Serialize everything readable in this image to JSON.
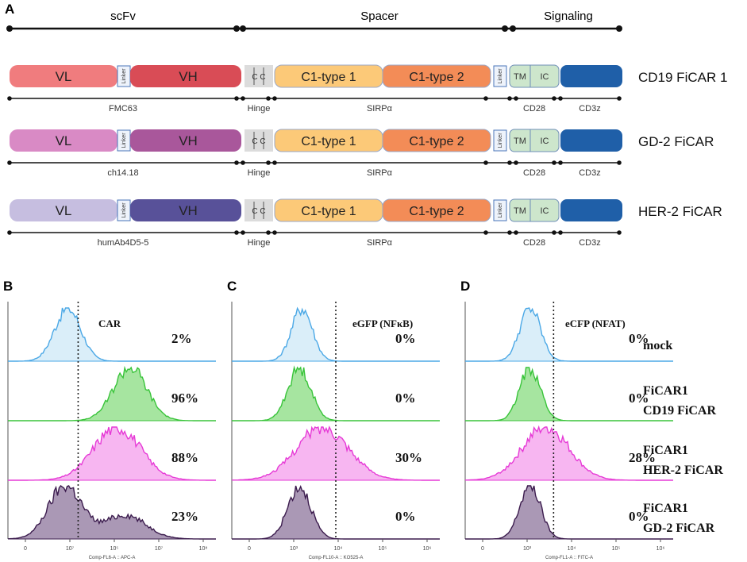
{
  "panels": {
    "A": "A",
    "B": "B",
    "C": "C",
    "D": "D"
  },
  "panelA": {
    "sections": {
      "scfv": "scFv",
      "spacer": "Spacer",
      "signaling": "Signaling"
    },
    "constructs": [
      {
        "name": "CD19 FiCAR 1",
        "vl": "VL",
        "vh": "VH",
        "vl_color": "#f07c7e",
        "vh_color": "#d94c56",
        "scfv_label": "FMC63",
        "hinge": "Hinge",
        "sirp": "SIRPα",
        "cd28": "CD28",
        "cd3z": "CD3z"
      },
      {
        "name": "GD-2 FiCAR",
        "vl": "VL",
        "vh": "VH",
        "vl_color": "#d98ac5",
        "vh_color": "#a9579b",
        "scfv_label": "ch14.18",
        "hinge": "Hinge",
        "sirp": "SIRPα",
        "cd28": "CD28",
        "cd3z": "CD3z"
      },
      {
        "name": "HER-2 FiCAR",
        "vl": "VL",
        "vh": "VH",
        "vl_color": "#c6bee0",
        "vh_color": "#585199",
        "scfv_label": "humAb4D5-5",
        "hinge": "Hinge",
        "sirp": "SIRPα",
        "cd28": "CD28",
        "cd3z": "CD3z"
      }
    ],
    "linker": "Linker",
    "cc": "C C",
    "c1_type1": "C1-type 1",
    "c1_type2": "C1-type 2",
    "tm": "TM",
    "ic": "IC",
    "colors": {
      "c1_type1": "#fcc978",
      "c1_type2": "#f38c57",
      "tmic": "#cde6cc",
      "cd3z": "#1f5fa8",
      "linker_box": "#eef3fb",
      "cc": "#dcdcdc"
    }
  },
  "flow": {
    "colors": {
      "mock": "#4ba8e6",
      "cd19": "#39c43a",
      "her2": "#e63ad6",
      "gd2": "#3b1b4d"
    },
    "fills": {
      "mock": "#d4ebf8",
      "cd19": "#97e08f",
      "her2": "#f6a9ee",
      "gd2": "#9b86a8"
    },
    "panels": [
      {
        "title": "CAR",
        "xlabel": "Comp-FL6-A :: APC-A",
        "gate_log": 0.95,
        "percents": [
          "2%",
          "96%",
          "88%",
          "23%"
        ],
        "peaks": {
          "mock": [
            0.75,
            0.25
          ],
          "cd19": [
            1.95,
            0.32
          ],
          "her2": [
            1.7,
            0.45
          ],
          "gd2": [
            0.7,
            0.32,
            1.85,
            0.4,
            0.45
          ]
        }
      },
      {
        "title": "eGFP (NFκB)",
        "xlabel": "Comp-FL10-A :: KO525-A",
        "gate_log": 1.6,
        "percents": [
          "0%",
          "0%",
          "30%",
          "0%"
        ],
        "peaks": {
          "mock": [
            0.95,
            0.2
          ],
          "cd19": [
            0.9,
            0.22
          ],
          "her2": [
            1.35,
            0.5
          ],
          "gd2": [
            0.9,
            0.22
          ]
        }
      },
      {
        "title": "eCFP (NFAT)",
        "xlabel": "Comp-FL1-A :: FITC-A",
        "gate_log": 1.3,
        "percents": [
          "0%",
          "0%",
          "28%",
          "0%"
        ],
        "peaks": {
          "mock": [
            0.85,
            0.2
          ],
          "cd19": [
            0.85,
            0.2
          ],
          "her2": [
            1.15,
            0.45
          ],
          "gd2": [
            0.85,
            0.2
          ]
        }
      }
    ],
    "ticks": [
      "0",
      "10³",
      "10⁴",
      "10⁵",
      "10⁶"
    ],
    "ticks_b": [
      "0",
      "10⁷",
      "10⁵",
      "10⁷",
      "10⁸"
    ],
    "legend": [
      {
        "line1": "mock",
        "line2": ""
      },
      {
        "line1": "FiCAR1",
        "line2": "CD19 FiCAR"
      },
      {
        "line1": "FiCAR1",
        "line2": "HER-2 FiCAR"
      },
      {
        "line1": "FiCAR1",
        "line2": "GD-2 FiCAR"
      }
    ]
  }
}
